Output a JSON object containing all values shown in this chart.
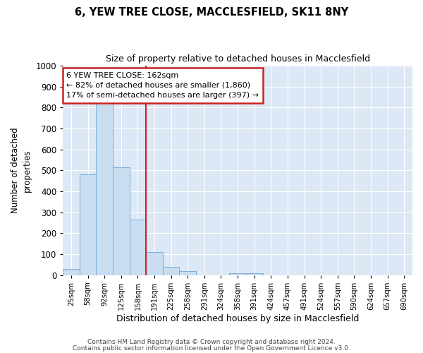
{
  "title1": "6, YEW TREE CLOSE, MACCLESFIELD, SK11 8NY",
  "title2": "Size of property relative to detached houses in Macclesfield",
  "xlabel": "Distribution of detached houses by size in Macclesfield",
  "ylabel": "Number of detached\nproperties",
  "annotation_line1": "6 YEW TREE CLOSE: 162sqm",
  "annotation_line2": "← 82% of detached houses are smaller (1,860)",
  "annotation_line3": "17% of semi-detached houses are larger (397) →",
  "bar_color": "#c9ddf0",
  "bar_edge_color": "#7aadda",
  "vline_color": "#cc2222",
  "vline_x": 4.5,
  "categories": [
    "25sqm",
    "58sqm",
    "92sqm",
    "125sqm",
    "158sqm",
    "191sqm",
    "225sqm",
    "258sqm",
    "291sqm",
    "324sqm",
    "358sqm",
    "391sqm",
    "424sqm",
    "457sqm",
    "491sqm",
    "524sqm",
    "557sqm",
    "590sqm",
    "624sqm",
    "657sqm",
    "690sqm"
  ],
  "values": [
    30,
    480,
    820,
    515,
    265,
    110,
    40,
    20,
    0,
    0,
    10,
    10,
    0,
    0,
    0,
    0,
    0,
    0,
    0,
    0,
    0
  ],
  "ylim": [
    0,
    1000
  ],
  "yticks": [
    0,
    100,
    200,
    300,
    400,
    500,
    600,
    700,
    800,
    900,
    1000
  ],
  "footer1": "Contains HM Land Registry data © Crown copyright and database right 2024.",
  "footer2": "Contains public sector information licensed under the Open Government Licence v3.0.",
  "fig_bg_color": "#ffffff",
  "plot_bg_color": "#dce8f5",
  "grid_color": "#ffffff",
  "ann_box_color": "#ffffff",
  "ann_edge_color": "#cc2222"
}
